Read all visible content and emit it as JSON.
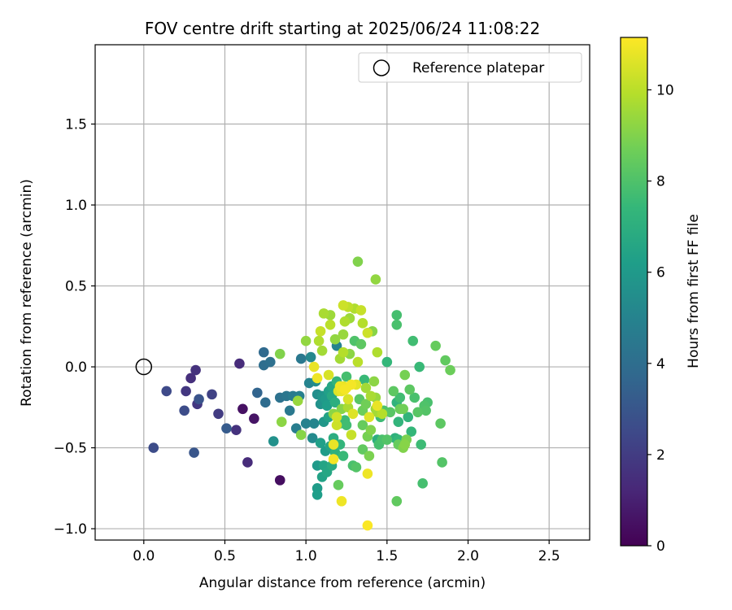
{
  "chart_data": {
    "type": "scatter",
    "title": "FOV centre drift starting at 2025/06/24 11:08:22",
    "xlabel": "Angular distance from reference (arcmin)",
    "ylabel": "Rotation from reference (arcmin)",
    "xlim": [
      -0.3,
      2.75
    ],
    "ylim": [
      -1.07,
      1.99
    ],
    "xticks": [
      0.0,
      0.5,
      1.0,
      1.5,
      2.0,
      2.5
    ],
    "xtick_labels": [
      "0.0",
      "0.5",
      "1.0",
      "1.5",
      "2.0",
      "2.5"
    ],
    "yticks": [
      -1.0,
      -0.5,
      0.0,
      0.5,
      1.0,
      1.5
    ],
    "ytick_labels": [
      "−1.0",
      "−0.5",
      "0.0",
      "0.5",
      "1.0",
      "1.5"
    ],
    "grid": true,
    "legend": {
      "position": "upper-right",
      "entries": [
        {
          "label": "Reference platepar",
          "marker": "open-circle"
        }
      ]
    },
    "reference_point": {
      "x": 0.0,
      "y": 0.0
    },
    "colorbar": {
      "label": "Hours from first FF file",
      "colormap": "viridis",
      "range": [
        0,
        11.15
      ],
      "ticks": [
        0,
        2,
        4,
        6,
        8,
        10
      ],
      "tick_labels": [
        "0",
        "2",
        "4",
        "6",
        "8",
        "10"
      ]
    },
    "colormap_stops": [
      "#440154",
      "#482878",
      "#3e4989",
      "#31688e",
      "#26828e",
      "#1f9e89",
      "#35b779",
      "#6ece58",
      "#b5de2b",
      "#fde725"
    ],
    "points": [
      {
        "x": 0.06,
        "y": -0.5,
        "h": 2.6
      },
      {
        "x": 0.14,
        "y": -0.15,
        "h": 2.5
      },
      {
        "x": 0.25,
        "y": -0.27,
        "h": 2.6
      },
      {
        "x": 0.26,
        "y": -0.15,
        "h": 1.8
      },
      {
        "x": 0.29,
        "y": -0.07,
        "h": 1.5
      },
      {
        "x": 0.31,
        "y": -0.53,
        "h": 3.0
      },
      {
        "x": 0.32,
        "y": -0.02,
        "h": 1.6
      },
      {
        "x": 0.33,
        "y": -0.23,
        "h": 1.8
      },
      {
        "x": 0.34,
        "y": -0.2,
        "h": 2.9
      },
      {
        "x": 0.42,
        "y": -0.17,
        "h": 2.2
      },
      {
        "x": 0.46,
        "y": -0.29,
        "h": 2.0
      },
      {
        "x": 0.51,
        "y": -0.38,
        "h": 3.2
      },
      {
        "x": 0.57,
        "y": -0.39,
        "h": 1.6
      },
      {
        "x": 0.59,
        "y": 0.02,
        "h": 1.4
      },
      {
        "x": 0.61,
        "y": -0.26,
        "h": 0.5
      },
      {
        "x": 0.64,
        "y": -0.59,
        "h": 1.4
      },
      {
        "x": 0.68,
        "y": -0.32,
        "h": 0.6
      },
      {
        "x": 0.7,
        "y": -0.16,
        "h": 3.6
      },
      {
        "x": 0.74,
        "y": 0.09,
        "h": 3.8
      },
      {
        "x": 0.74,
        "y": 0.01,
        "h": 4.0
      },
      {
        "x": 0.75,
        "y": -0.22,
        "h": 3.9
      },
      {
        "x": 0.78,
        "y": 0.03,
        "h": 4.1
      },
      {
        "x": 0.8,
        "y": -0.46,
        "h": 5.6
      },
      {
        "x": 0.84,
        "y": -0.7,
        "h": 0.4
      },
      {
        "x": 0.84,
        "y": -0.19,
        "h": 4.2
      },
      {
        "x": 0.84,
        "y": 0.08,
        "h": 9.0
      },
      {
        "x": 0.85,
        "y": -0.34,
        "h": 9.2
      },
      {
        "x": 0.88,
        "y": -0.18,
        "h": 4.4
      },
      {
        "x": 0.9,
        "y": -0.27,
        "h": 4.5
      },
      {
        "x": 0.92,
        "y": -0.18,
        "h": 4.6
      },
      {
        "x": 0.94,
        "y": -0.38,
        "h": 4.7
      },
      {
        "x": 0.95,
        "y": -0.21,
        "h": 9.4
      },
      {
        "x": 0.96,
        "y": -0.18,
        "h": 4.8
      },
      {
        "x": 0.97,
        "y": 0.05,
        "h": 4.5
      },
      {
        "x": 0.97,
        "y": -0.42,
        "h": 9.1
      },
      {
        "x": 1.0,
        "y": -0.35,
        "h": 4.9
      },
      {
        "x": 1.0,
        "y": 0.16,
        "h": 9.3
      },
      {
        "x": 1.02,
        "y": -0.1,
        "h": 5.0
      },
      {
        "x": 1.03,
        "y": 0.06,
        "h": 5.2
      },
      {
        "x": 1.04,
        "y": -0.44,
        "h": 5.3
      },
      {
        "x": 1.05,
        "y": 0.0,
        "h": 10.8
      },
      {
        "x": 1.05,
        "y": -0.35,
        "h": 5.1
      },
      {
        "x": 1.06,
        "y": -0.09,
        "h": 5.4
      },
      {
        "x": 1.07,
        "y": -0.17,
        "h": 5.5
      },
      {
        "x": 1.07,
        "y": -0.61,
        "h": 6.0
      },
      {
        "x": 1.07,
        "y": -0.75,
        "h": 6.1
      },
      {
        "x": 1.07,
        "y": -0.79,
        "h": 6.2
      },
      {
        "x": 1.07,
        "y": -0.07,
        "h": 10.9
      },
      {
        "x": 1.08,
        "y": 0.16,
        "h": 9.8
      },
      {
        "x": 1.09,
        "y": -0.23,
        "h": 5.6
      },
      {
        "x": 1.09,
        "y": -0.47,
        "h": 6.3
      },
      {
        "x": 1.09,
        "y": 0.22,
        "h": 10.2
      },
      {
        "x": 1.1,
        "y": -0.22,
        "h": 5.7
      },
      {
        "x": 1.1,
        "y": -0.68,
        "h": 6.4
      },
      {
        "x": 1.1,
        "y": -0.18,
        "h": 5.8
      },
      {
        "x": 1.1,
        "y": 0.1,
        "h": 9.6
      },
      {
        "x": 1.11,
        "y": -0.61,
        "h": 6.5
      },
      {
        "x": 1.11,
        "y": 0.33,
        "h": 9.7
      },
      {
        "x": 1.11,
        "y": -0.34,
        "h": 5.9
      },
      {
        "x": 1.12,
        "y": -0.2,
        "h": 6.0
      },
      {
        "x": 1.12,
        "y": -0.52,
        "h": 6.1
      },
      {
        "x": 1.13,
        "y": -0.65,
        "h": 6.6
      },
      {
        "x": 1.13,
        "y": -0.24,
        "h": 6.2
      },
      {
        "x": 1.14,
        "y": -0.15,
        "h": 6.3
      },
      {
        "x": 1.14,
        "y": -0.31,
        "h": 6.4
      },
      {
        "x": 1.14,
        "y": -0.05,
        "h": 10.5
      },
      {
        "x": 1.15,
        "y": 0.26,
        "h": 10.0
      },
      {
        "x": 1.15,
        "y": -0.49,
        "h": 6.5
      },
      {
        "x": 1.15,
        "y": 0.32,
        "h": 9.5
      },
      {
        "x": 1.16,
        "y": -0.12,
        "h": 6.6
      },
      {
        "x": 1.16,
        "y": -0.18,
        "h": 6.7
      },
      {
        "x": 1.16,
        "y": -0.61,
        "h": 6.8
      },
      {
        "x": 1.17,
        "y": -0.29,
        "h": 9.2
      },
      {
        "x": 1.17,
        "y": -0.48,
        "h": 10.8
      },
      {
        "x": 1.17,
        "y": -0.44,
        "h": 6.9
      },
      {
        "x": 1.17,
        "y": -0.57,
        "h": 11.0
      },
      {
        "x": 1.18,
        "y": 0.17,
        "h": 9.3
      },
      {
        "x": 1.18,
        "y": -0.22,
        "h": 7.0
      },
      {
        "x": 1.18,
        "y": -0.53,
        "h": 7.1
      },
      {
        "x": 1.19,
        "y": -0.31,
        "h": 10.4
      },
      {
        "x": 1.19,
        "y": 0.13,
        "h": 5.0
      },
      {
        "x": 1.19,
        "y": -0.36,
        "h": 10.3
      },
      {
        "x": 1.19,
        "y": -0.09,
        "h": 7.2
      },
      {
        "x": 1.2,
        "y": -0.73,
        "h": 8.5
      },
      {
        "x": 1.2,
        "y": -0.15,
        "h": 10.6
      },
      {
        "x": 1.21,
        "y": -0.12,
        "h": 10.9
      },
      {
        "x": 1.21,
        "y": 0.05,
        "h": 9.6
      },
      {
        "x": 1.21,
        "y": -0.48,
        "h": 7.3
      },
      {
        "x": 1.21,
        "y": -0.35,
        "h": 7.4
      },
      {
        "x": 1.22,
        "y": -0.15,
        "h": 10.8
      },
      {
        "x": 1.22,
        "y": -0.83,
        "h": 10.9
      },
      {
        "x": 1.22,
        "y": -0.26,
        "h": 9.1
      },
      {
        "x": 1.23,
        "y": 0.09,
        "h": 9.9
      },
      {
        "x": 1.23,
        "y": -0.12,
        "h": 10.7
      },
      {
        "x": 1.23,
        "y": -0.55,
        "h": 7.5
      },
      {
        "x": 1.23,
        "y": 0.2,
        "h": 9.4
      },
      {
        "x": 1.23,
        "y": 0.38,
        "h": 10.3
      },
      {
        "x": 1.24,
        "y": -0.33,
        "h": 7.6
      },
      {
        "x": 1.24,
        "y": -0.14,
        "h": 11.0
      },
      {
        "x": 1.24,
        "y": 0.28,
        "h": 9.8
      },
      {
        "x": 1.25,
        "y": -0.36,
        "h": 7.7
      },
      {
        "x": 1.25,
        "y": -0.13,
        "h": 10.9
      },
      {
        "x": 1.25,
        "y": -0.06,
        "h": 7.8
      },
      {
        "x": 1.26,
        "y": 0.37,
        "h": 10.1
      },
      {
        "x": 1.26,
        "y": -0.25,
        "h": 9.7
      },
      {
        "x": 1.26,
        "y": -0.2,
        "h": 10.5
      },
      {
        "x": 1.27,
        "y": 0.08,
        "h": 9.2
      },
      {
        "x": 1.27,
        "y": 0.3,
        "h": 9.5
      },
      {
        "x": 1.28,
        "y": -0.42,
        "h": 10.2
      },
      {
        "x": 1.28,
        "y": -0.11,
        "h": 11.0
      },
      {
        "x": 1.29,
        "y": -0.61,
        "h": 7.9
      },
      {
        "x": 1.29,
        "y": -0.29,
        "h": 10.6
      },
      {
        "x": 1.3,
        "y": 0.36,
        "h": 9.8
      },
      {
        "x": 1.3,
        "y": 0.16,
        "h": 8.0
      },
      {
        "x": 1.31,
        "y": -0.62,
        "h": 8.1
      },
      {
        "x": 1.31,
        "y": -0.11,
        "h": 10.7
      },
      {
        "x": 1.32,
        "y": 0.65,
        "h": 9.0
      },
      {
        "x": 1.32,
        "y": 0.03,
        "h": 10.0
      },
      {
        "x": 1.33,
        "y": -0.2,
        "h": 8.2
      },
      {
        "x": 1.34,
        "y": 0.35,
        "h": 10.2
      },
      {
        "x": 1.34,
        "y": 0.14,
        "h": 8.3
      },
      {
        "x": 1.35,
        "y": -0.51,
        "h": 8.4
      },
      {
        "x": 1.35,
        "y": -0.36,
        "h": 8.5
      },
      {
        "x": 1.35,
        "y": -0.27,
        "h": 8.6
      },
      {
        "x": 1.35,
        "y": 0.27,
        "h": 9.9
      },
      {
        "x": 1.36,
        "y": -0.08,
        "h": 7.5
      },
      {
        "x": 1.37,
        "y": -0.23,
        "h": 8.7
      },
      {
        "x": 1.37,
        "y": -0.13,
        "h": 9.6
      },
      {
        "x": 1.38,
        "y": 0.21,
        "h": 10.3
      },
      {
        "x": 1.38,
        "y": -0.66,
        "h": 10.9
      },
      {
        "x": 1.38,
        "y": -0.98,
        "h": 11.1
      },
      {
        "x": 1.38,
        "y": -0.43,
        "h": 8.8
      },
      {
        "x": 1.39,
        "y": -0.31,
        "h": 10.6
      },
      {
        "x": 1.39,
        "y": -0.55,
        "h": 8.9
      },
      {
        "x": 1.4,
        "y": -0.39,
        "h": 9.0
      },
      {
        "x": 1.4,
        "y": -0.18,
        "h": 9.7
      },
      {
        "x": 1.41,
        "y": 0.22,
        "h": 9.1
      },
      {
        "x": 1.42,
        "y": -0.09,
        "h": 9.2
      },
      {
        "x": 1.43,
        "y": 0.54,
        "h": 9.3
      },
      {
        "x": 1.43,
        "y": -0.19,
        "h": 9.4
      },
      {
        "x": 1.43,
        "y": -0.26,
        "h": 9.5
      },
      {
        "x": 1.44,
        "y": -0.28,
        "h": 9.6
      },
      {
        "x": 1.44,
        "y": -0.24,
        "h": 10.8
      },
      {
        "x": 1.44,
        "y": -0.45,
        "h": 7.0
      },
      {
        "x": 1.44,
        "y": 0.09,
        "h": 9.8
      },
      {
        "x": 1.45,
        "y": -0.48,
        "h": 7.8
      },
      {
        "x": 1.46,
        "y": -0.31,
        "h": 7.6
      },
      {
        "x": 1.47,
        "y": -0.45,
        "h": 7.9
      },
      {
        "x": 1.47,
        "y": -0.29,
        "h": 9.9
      },
      {
        "x": 1.48,
        "y": -0.27,
        "h": 8.0
      },
      {
        "x": 1.5,
        "y": 0.03,
        "h": 7.4
      },
      {
        "x": 1.5,
        "y": -0.45,
        "h": 8.1
      },
      {
        "x": 1.52,
        "y": -0.28,
        "h": 8.2
      },
      {
        "x": 1.54,
        "y": -0.15,
        "h": 8.3
      },
      {
        "x": 1.55,
        "y": -0.44,
        "h": 7.1
      },
      {
        "x": 1.56,
        "y": 0.32,
        "h": 7.8
      },
      {
        "x": 1.56,
        "y": 0.26,
        "h": 7.9
      },
      {
        "x": 1.56,
        "y": -0.83,
        "h": 8.4
      },
      {
        "x": 1.56,
        "y": -0.22,
        "h": 7.2
      },
      {
        "x": 1.57,
        "y": -0.34,
        "h": 7.3
      },
      {
        "x": 1.57,
        "y": -0.45,
        "h": 7.4
      },
      {
        "x": 1.57,
        "y": -0.48,
        "h": 8.5
      },
      {
        "x": 1.58,
        "y": -0.26,
        "h": 8.6
      },
      {
        "x": 1.58,
        "y": -0.19,
        "h": 7.7
      },
      {
        "x": 1.6,
        "y": -0.5,
        "h": 9.0
      },
      {
        "x": 1.6,
        "y": -0.26,
        "h": 8.7
      },
      {
        "x": 1.61,
        "y": -0.05,
        "h": 8.8
      },
      {
        "x": 1.61,
        "y": -0.48,
        "h": 9.1
      },
      {
        "x": 1.62,
        "y": -0.45,
        "h": 8.9
      },
      {
        "x": 1.63,
        "y": -0.31,
        "h": 7.3
      },
      {
        "x": 1.64,
        "y": -0.14,
        "h": 8.3
      },
      {
        "x": 1.65,
        "y": -0.4,
        "h": 7.4
      },
      {
        "x": 1.66,
        "y": 0.16,
        "h": 7.7
      },
      {
        "x": 1.67,
        "y": -0.19,
        "h": 7.9
      },
      {
        "x": 1.69,
        "y": -0.28,
        "h": 8.2
      },
      {
        "x": 1.7,
        "y": 0.0,
        "h": 7.5
      },
      {
        "x": 1.71,
        "y": -0.48,
        "h": 7.6
      },
      {
        "x": 1.72,
        "y": -0.72,
        "h": 7.8
      },
      {
        "x": 1.73,
        "y": -0.24,
        "h": 8.0
      },
      {
        "x": 1.74,
        "y": -0.27,
        "h": 8.1
      },
      {
        "x": 1.75,
        "y": -0.22,
        "h": 7.9
      },
      {
        "x": 1.8,
        "y": 0.13,
        "h": 8.5
      },
      {
        "x": 1.83,
        "y": -0.35,
        "h": 8.3
      },
      {
        "x": 1.84,
        "y": -0.59,
        "h": 8.1
      },
      {
        "x": 1.86,
        "y": 0.04,
        "h": 8.4
      },
      {
        "x": 1.89,
        "y": -0.02,
        "h": 8.6
      }
    ]
  }
}
